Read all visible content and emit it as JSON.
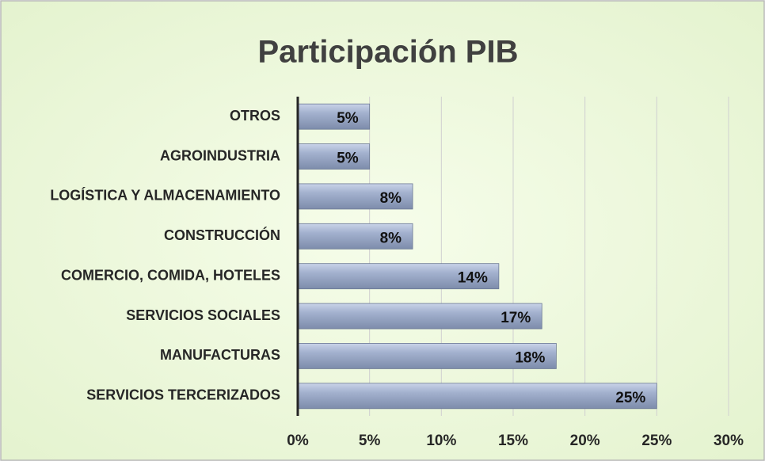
{
  "chart_data": {
    "type": "bar",
    "orientation": "horizontal",
    "title": "Participación PIB",
    "categories": [
      "OTROS",
      "AGROINDUSTRIA",
      "LOGÍSTICA Y ALMACENAMIENTO",
      "CONSTRUCCIÓN",
      "COMERCIO, COMIDA, HOTELES",
      "SERVICIOS SOCIALES",
      "MANUFACTURAS",
      "SERVICIOS TERCERIZADOS"
    ],
    "values": [
      5,
      5,
      8,
      8,
      14,
      17,
      18,
      25
    ],
    "value_labels": [
      "5%",
      "5%",
      "8%",
      "8%",
      "14%",
      "17%",
      "18%",
      "25%"
    ],
    "color": "#8e9dbb",
    "xlim": [
      0,
      30
    ],
    "xticks": [
      {
        "value": 0,
        "label": "0%"
      },
      {
        "value": 5,
        "label": "5%"
      },
      {
        "value": 10,
        "label": "10%"
      },
      {
        "value": 15,
        "label": "15%"
      },
      {
        "value": 20,
        "label": "20%"
      },
      {
        "value": 25,
        "label": "25%"
      },
      {
        "value": 30,
        "label": "30%"
      }
    ],
    "grid": true
  }
}
